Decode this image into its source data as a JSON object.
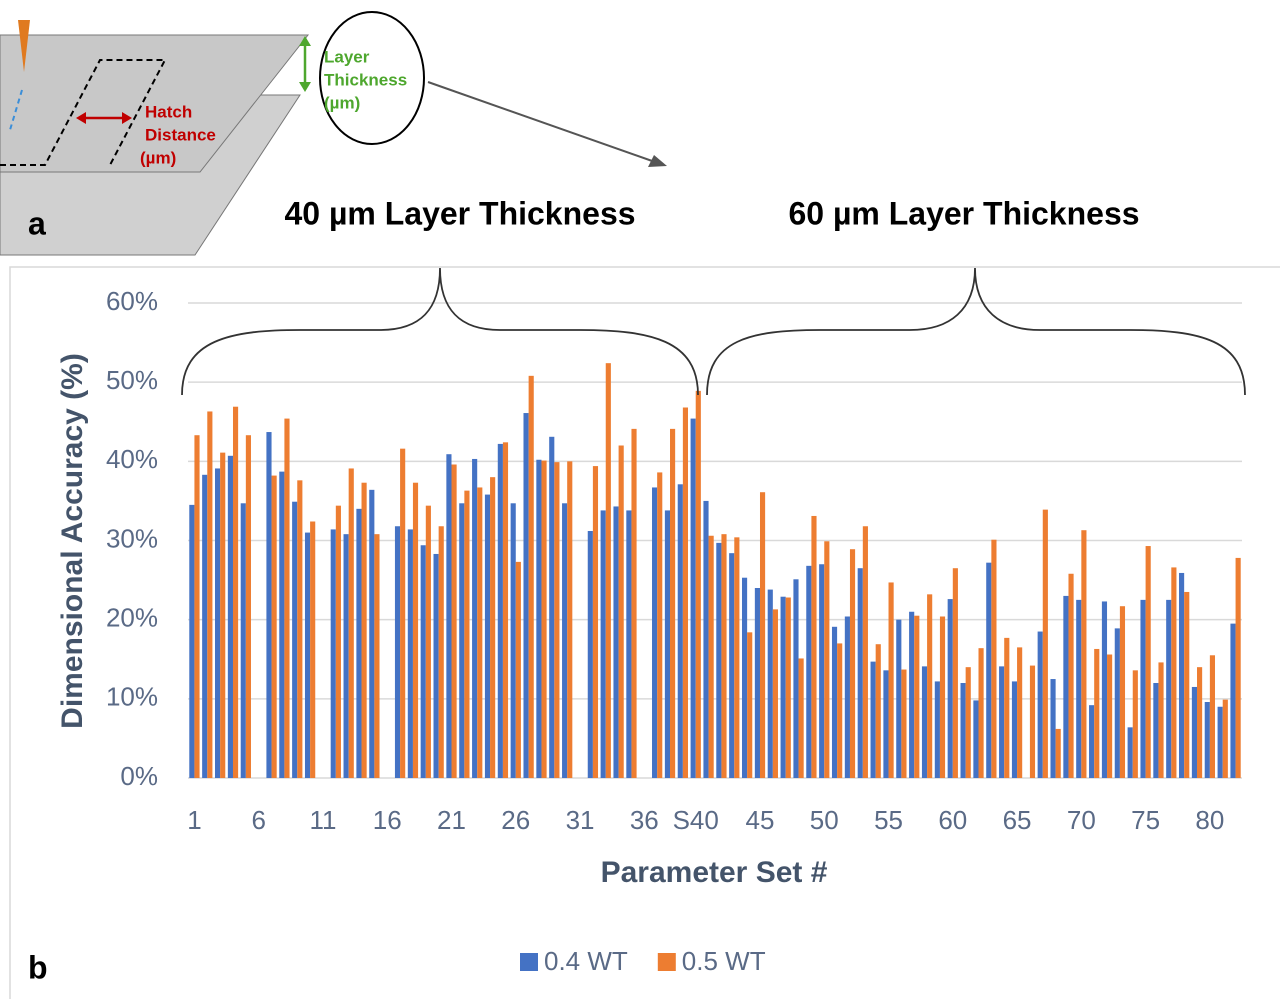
{
  "chart_data": {
    "type": "bar",
    "panel_a_label": "a",
    "panel_b_label": "b",
    "layer_thickness_label": [
      "Layer",
      "Thickness",
      "(µm)"
    ],
    "hatch_distance_label": [
      "Hatch",
      "Distance",
      "(µm)"
    ],
    "group_labels": [
      "40 µm Layer Thickness",
      "60 µm Layer Thickness"
    ],
    "y_label": "Dimensional Accuracy (%)",
    "x_label": "Parameter Set #",
    "categories": [
      "1",
      null,
      null,
      null,
      null,
      "6",
      null,
      null,
      null,
      null,
      "11",
      null,
      null,
      null,
      null,
      "16",
      null,
      null,
      null,
      null,
      "21",
      null,
      null,
      null,
      null,
      "26",
      null,
      null,
      null,
      null,
      "31",
      null,
      null,
      null,
      null,
      "36",
      null,
      null,
      null,
      "S40",
      null,
      null,
      null,
      null,
      "45",
      null,
      null,
      null,
      null,
      "50",
      null,
      null,
      null,
      null,
      "55",
      null,
      null,
      null,
      null,
      "60",
      null,
      null,
      null,
      null,
      "65",
      null,
      null,
      null,
      null,
      "70",
      null,
      null,
      null,
      null,
      "75",
      null,
      null,
      null,
      null,
      "80",
      null,
      null
    ],
    "series": [
      {
        "name": "0.4 WT",
        "color": "#4472c4",
        "values": [
          34.5,
          38.3,
          39.1,
          40.7,
          34.7,
          null,
          43.7,
          38.7,
          34.9,
          31.0,
          null,
          31.4,
          30.8,
          34.0,
          36.4,
          null,
          31.8,
          31.4,
          29.4,
          28.3,
          40.9,
          34.7,
          40.3,
          35.8,
          42.2,
          34.7,
          46.1,
          40.2,
          43.1,
          34.7,
          null,
          31.2,
          33.8,
          34.3,
          33.8,
          null,
          36.7,
          33.8,
          37.1,
          45.4,
          35.0,
          29.7,
          28.4,
          25.3,
          24.0,
          23.8,
          22.9,
          25.1,
          26.8,
          27.0,
          19.1,
          20.4,
          26.5,
          14.7,
          13.6,
          20.0,
          21.0,
          14.1,
          12.2,
          22.6,
          12.0,
          9.8,
          27.2,
          14.1,
          12.2,
          null,
          18.5,
          12.5,
          23.0,
          22.5,
          9.2,
          22.3,
          18.9,
          6.4,
          22.5,
          12.0,
          22.5,
          25.9,
          11.5,
          9.6,
          9.0,
          19.5
        ]
      },
      {
        "name": "0.5 WT",
        "color": "#ed7d31",
        "values": [
          43.3,
          46.3,
          41.1,
          46.9,
          43.3,
          null,
          38.2,
          45.4,
          37.6,
          32.4,
          null,
          34.4,
          39.1,
          37.3,
          30.8,
          null,
          41.6,
          37.3,
          34.4,
          31.8,
          39.6,
          36.3,
          36.7,
          38.0,
          42.4,
          27.3,
          50.8,
          40.1,
          39.9,
          40.0,
          null,
          39.4,
          52.4,
          42.0,
          44.1,
          null,
          38.6,
          44.1,
          46.8,
          48.9,
          30.6,
          30.8,
          30.4,
          18.4,
          36.1,
          21.3,
          22.8,
          15.1,
          33.1,
          29.9,
          17.0,
          28.9,
          31.8,
          16.9,
          24.7,
          13.7,
          20.5,
          23.2,
          20.4,
          26.5,
          14.0,
          16.4,
          30.1,
          17.7,
          16.5,
          14.2,
          33.9,
          6.2,
          25.8,
          31.3,
          16.3,
          15.6,
          21.7,
          13.6,
          29.3,
          14.6,
          26.6,
          23.5,
          14.0,
          15.5,
          9.9,
          27.8
        ]
      }
    ],
    "ylim": [
      0,
      60
    ],
    "yticks": [
      {
        "value": 0,
        "label": "0%"
      },
      {
        "value": 10,
        "label": "10%"
      },
      {
        "value": 20,
        "label": "20%"
      },
      {
        "value": 30,
        "label": "30%"
      },
      {
        "value": 40,
        "label": "40%"
      },
      {
        "value": 50,
        "label": "50%"
      },
      {
        "value": 60,
        "label": "60%"
      }
    ],
    "grid": true,
    "legend": "bottom"
  }
}
